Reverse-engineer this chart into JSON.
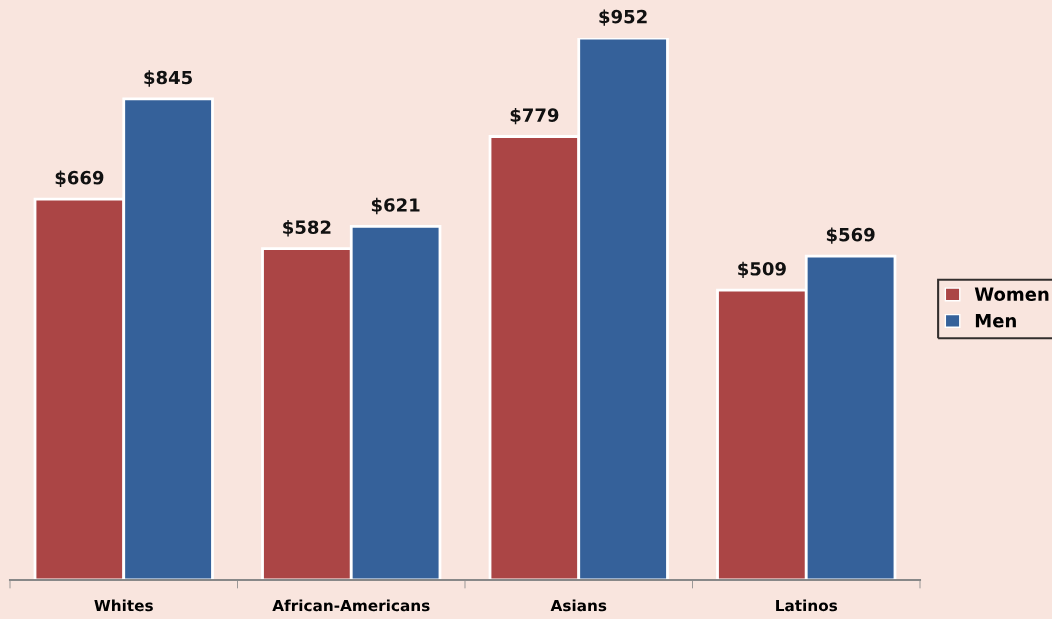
{
  "chart_data": {
    "type": "bar",
    "categories": [
      "Whites",
      "African-Americans",
      "Asians",
      "Latinos"
    ],
    "series": [
      {
        "name": "Women",
        "color": "#ab4545",
        "values": [
          669,
          582,
          779,
          509
        ],
        "value_labels": [
          "$669",
          "$582",
          "$779",
          "$509"
        ]
      },
      {
        "name": "Men",
        "color": "#35619a",
        "values": [
          845,
          621,
          952,
          569
        ],
        "value_labels": [
          "$845",
          "$621",
          "$952",
          "$569"
        ]
      }
    ],
    "legend": "right",
    "grid": false
  }
}
